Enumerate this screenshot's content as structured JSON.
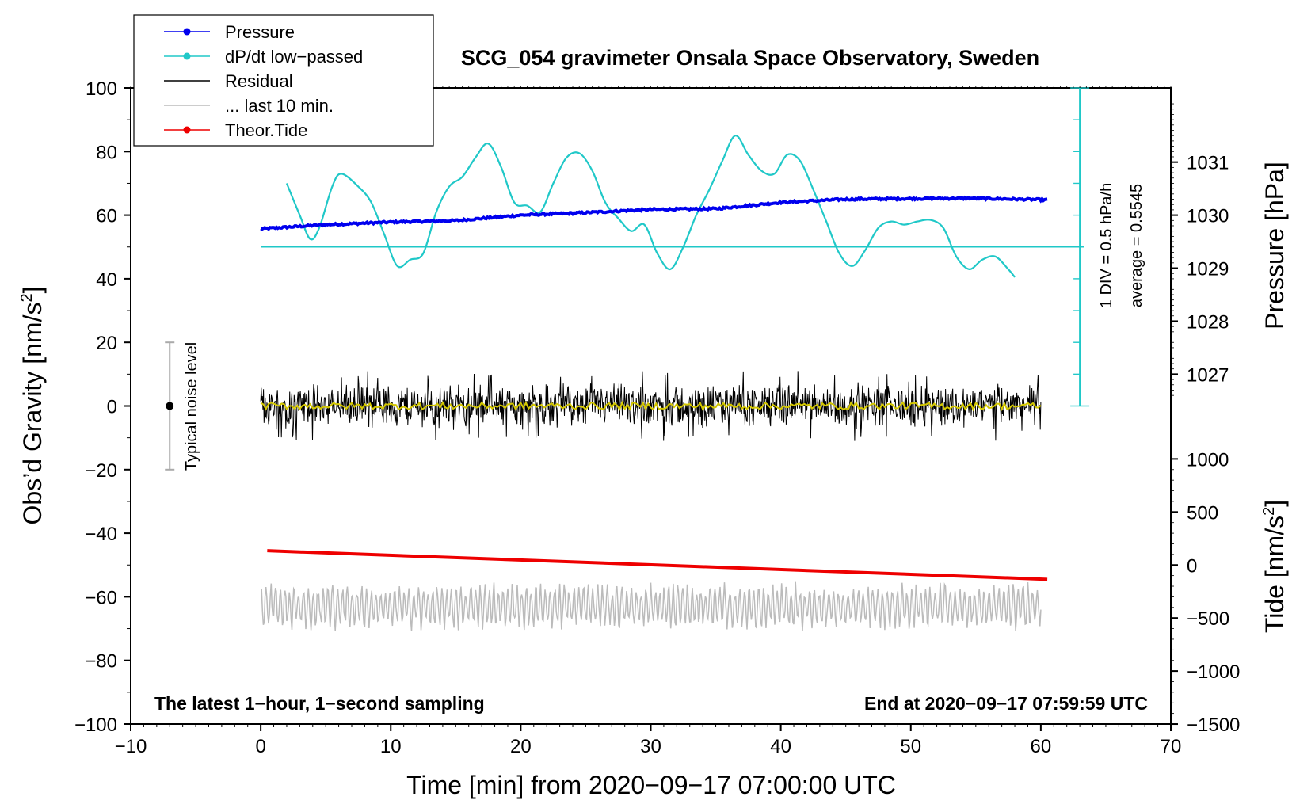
{
  "chart_data": {
    "type": "line",
    "title": "SCG_054 gravimeter Onsala Space Observatory, Sweden",
    "xlabel": "Time [min] from 2020−09−17 07:00:00 UTC",
    "ylabel_left": "Obs’d Gravity [nm/s",
    "ylabel_left_sup": "2",
    "ylabel_left_end": "]",
    "ylabel_right_pressure": "Pressure [hPa]",
    "ylabel_right_tide": "Tide [nm/s",
    "ylabel_right_tide_sup": "2",
    "ylabel_right_tide_end": "]",
    "xlim": [
      -10,
      70
    ],
    "ylim_left": [
      -100,
      100
    ],
    "x_ticks": [
      "−10",
      "0",
      "10",
      "20",
      "30",
      "40",
      "50",
      "60",
      "70"
    ],
    "y_ticks_left": [
      "100",
      "80",
      "60",
      "40",
      "20",
      "0",
      "−20",
      "−40",
      "−60",
      "−80",
      "−100"
    ],
    "pressure_ticks": [
      "1031",
      "1030",
      "1029",
      "1028",
      "1027"
    ],
    "tide_ticks": [
      "1000",
      "500",
      "0",
      "−500",
      "−1000",
      "−1500"
    ],
    "pressure_axis": {
      "gravity_at_1030": 60,
      "gravity_per_hPa": 16.67
    },
    "tide_axis": {
      "gravity_at_0": -50,
      "gravity_per_500": 16.67
    },
    "legend": [
      {
        "label": "Pressure",
        "color": "#0000ee",
        "marker": true
      },
      {
        "label": "dP/dt low−passed",
        "color": "#20c8c8",
        "marker": true
      },
      {
        "label": "Residual",
        "color": "#000000",
        "marker": false
      },
      {
        "label": "... last 10 min.",
        "color": "#bbbbbb",
        "marker": false
      },
      {
        "label": "Theor.Tide",
        "color": "#ee0000",
        "marker": true
      }
    ],
    "noise_level": {
      "label": "Typical noise level",
      "x": -7,
      "low": -20,
      "high": 20,
      "center": 0
    },
    "dpdt_scale": {
      "div_label": "1 DIV = 0.5 hPa/h",
      "average_label": "average = 0.5545",
      "baseline_gravity": 50,
      "scale_x": 63
    },
    "annotation_left": "The latest 1−hour, 1−second sampling",
    "annotation_right": "End at 2020−09−17 07:59:59 UTC",
    "series": [
      {
        "name": "Pressure",
        "color": "#0000ee",
        "unit": "gravity",
        "x": [
          0,
          5,
          10,
          15,
          20,
          25,
          30,
          35,
          40,
          45,
          50,
          55,
          60.5
        ],
        "values": [
          55.7,
          57.0,
          57.8,
          58.3,
          60.0,
          60.8,
          61.8,
          62.0,
          64.0,
          65.0,
          65.2,
          65.3,
          64.8
        ]
      },
      {
        "name": "dP/dt low-passed",
        "color": "#20c8c8",
        "unit": "gravity",
        "x": [
          2,
          3,
          3.8,
          4.5,
          5.5,
          6.2,
          7.5,
          8.5,
          9.5,
          10.5,
          11.5,
          12.5,
          13.5,
          14.5,
          15.5,
          16.5,
          17.5,
          18.5,
          19.5,
          20.5,
          21.5,
          22.5,
          23.5,
          24.5,
          25.5,
          26.5,
          27.5,
          28.5,
          29.5,
          30.5,
          31.5,
          32.5,
          33.5,
          34.5,
          35.5,
          36.5,
          37.5,
          38.5,
          39.5,
          40.5,
          41.5,
          42.5,
          43.5,
          44.5,
          45.5,
          46.5,
          47.5,
          48.5,
          49.5,
          50.5,
          51.5,
          52.5,
          53.5,
          54.5,
          55.5,
          56.5,
          57.5,
          58
        ],
        "values": [
          70,
          60,
          52.5,
          56,
          69,
          73,
          69,
          64,
          54,
          44,
          46,
          48,
          61,
          69,
          72,
          78,
          82.5,
          75,
          64,
          63,
          61,
          70,
          78,
          79.5,
          74,
          64,
          59,
          55,
          57,
          48,
          43,
          50,
          60,
          68,
          77,
          85,
          79,
          74,
          73,
          79,
          77,
          68,
          58,
          48,
          44,
          49,
          56,
          58,
          57,
          58,
          58.5,
          56,
          47,
          43,
          46,
          47,
          43,
          40.5
        ]
      },
      {
        "name": "Theor.Tide",
        "color": "#ee0000",
        "unit": "gravity",
        "x": [
          0.5,
          60.5
        ],
        "values": [
          -45.5,
          -54.5
        ]
      },
      {
        "name": "Residual",
        "color": "#000000",
        "unit": "gravity",
        "x_range": [
          0,
          60
        ],
        "center": 0,
        "amplitude": 8,
        "peak": 11
      },
      {
        "name": "... last 10 min.",
        "color": "#bbbbbb",
        "unit": "gravity",
        "x_range": [
          0,
          60
        ],
        "center": -63,
        "amplitude": 6
      }
    ]
  }
}
